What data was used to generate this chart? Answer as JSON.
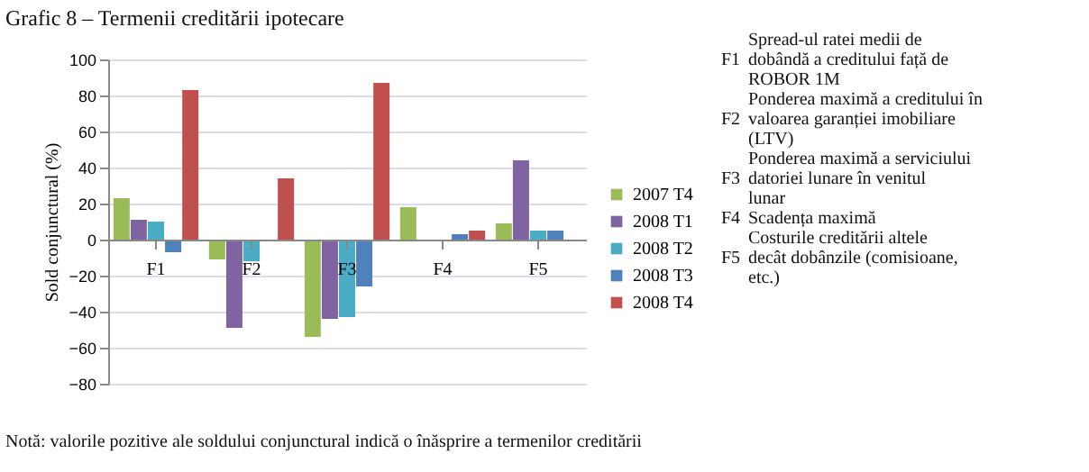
{
  "chart_data": {
    "type": "bar",
    "title": "Grafic 8 – Termenii creditării ipotecare",
    "ylabel": "Sold conjunctural (%)",
    "categories": [
      "F1",
      "F2",
      "F3",
      "F4",
      "F5"
    ],
    "series": [
      {
        "name": "2007 T4",
        "color": "#9bbb59",
        "values": [
          23,
          -11,
          -54,
          18,
          9
        ]
      },
      {
        "name": "2008 T1",
        "color": "#8064a2",
        "values": [
          11,
          -49,
          -44,
          0,
          44
        ]
      },
      {
        "name": "2008 T2",
        "color": "#4bacc6",
        "values": [
          10,
          -12,
          -43,
          0,
          5
        ]
      },
      {
        "name": "2008 T3",
        "color": "#4f81bd",
        "values": [
          -7,
          0,
          -26,
          3,
          5
        ]
      },
      {
        "name": "2008 T4",
        "color": "#c0504d",
        "values": [
          83,
          34,
          87,
          5,
          0
        ]
      }
    ],
    "ylim": [
      -80,
      100
    ],
    "yticks": [
      -80,
      -60,
      -40,
      -20,
      0,
      20,
      40,
      60,
      80,
      100
    ],
    "grid": "y",
    "legend": "right",
    "annotations": [
      "F1",
      "Spread-ul ratei medii de dobândă a creditului față de ROBOR 1M",
      "F2",
      "Ponderea maximă a creditului în valoarea garanției imobiliare (LTV)",
      "F3",
      "Ponderea maximă a serviciului datoriei lunare în venitul lunar",
      "F4",
      "Scadența maximă",
      "F5",
      "Costurile creditării altele decât dobânzile (comisioane, etc.)",
      "Notă: valorile pozitive ale soldului conjunctural indică o înăsprire a termenilor creditării"
    ]
  }
}
